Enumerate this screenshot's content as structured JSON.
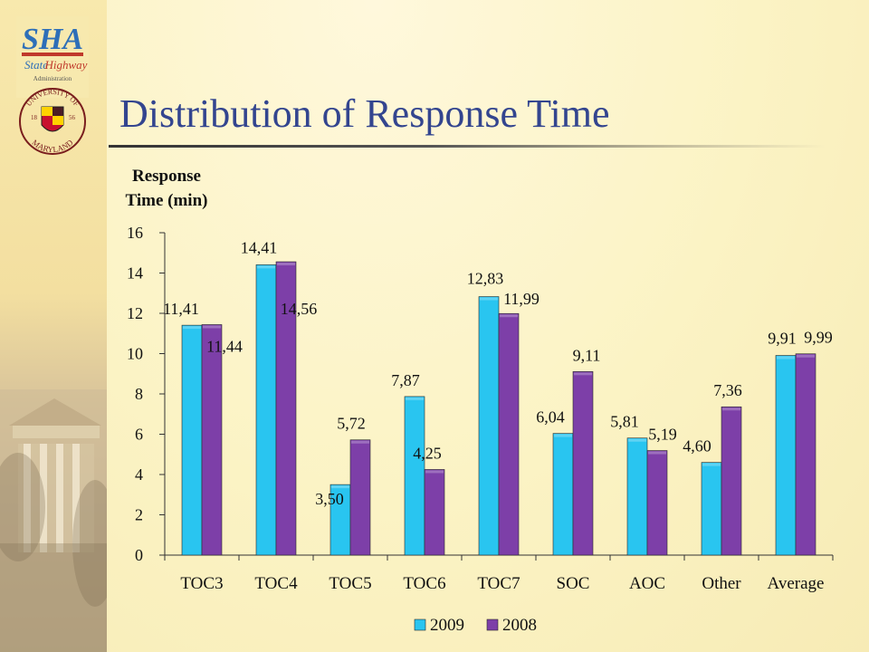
{
  "slide": {
    "title": "Distribution of Response Time",
    "sha_logo": {
      "main": "SHA",
      "sub1": "State",
      "sub2": "Highway",
      "sub3": "Administration"
    },
    "umd_seal": {
      "top": "UNIVERSITY OF",
      "bottom": "MARYLAND",
      "year_left": "18",
      "year_right": "56"
    }
  },
  "chart_data": {
    "type": "bar",
    "ylabel_lines": [
      "Response",
      "Time (min)"
    ],
    "categories": [
      "TOC3",
      "TOC4",
      "TOC5",
      "TOC6",
      "TOC7",
      "SOC",
      "AOC",
      "Other",
      "Average"
    ],
    "ylim": [
      0,
      16
    ],
    "yticks": [
      "0",
      "2",
      "4",
      "6",
      "8",
      "10",
      "12",
      "14",
      "16"
    ],
    "series": [
      {
        "name": "2009",
        "color": "#29c5f0",
        "values": [
          11.41,
          14.41,
          3.5,
          7.87,
          12.83,
          6.04,
          5.81,
          4.6,
          9.91
        ],
        "labels": [
          "11,41",
          "14,41",
          "3,50",
          "7,87",
          "12,83",
          "6,04",
          "5,81",
          "4,60",
          "9,91"
        ]
      },
      {
        "name": "2008",
        "color": "#7d3fa8",
        "values": [
          11.44,
          14.56,
          5.72,
          4.25,
          11.99,
          9.11,
          5.19,
          7.36,
          9.99
        ],
        "labels": [
          "11,44",
          "14,56",
          "5,72",
          "4,25",
          "11,99",
          "9,11",
          "5,19",
          "7,36",
          "9,99"
        ]
      }
    ],
    "legend_position": "bottom",
    "grid": false
  }
}
